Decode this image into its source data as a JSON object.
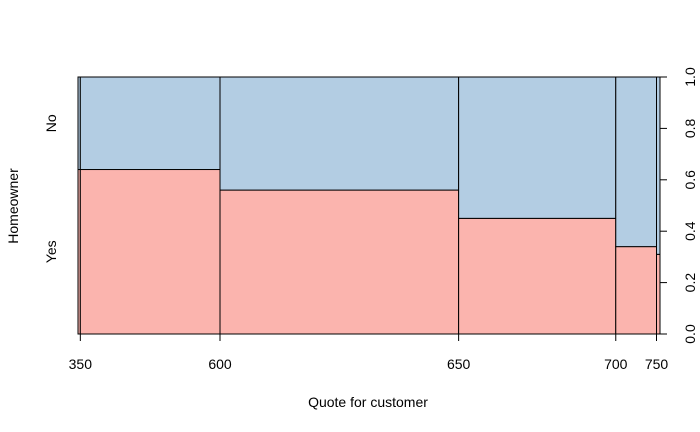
{
  "chart_data": {
    "type": "spineplot",
    "xlabel": "Quote for customer",
    "ylabel": "Homeowner",
    "x_breaks": [
      350,
      600,
      650,
      700,
      750
    ],
    "x_tick_labels": [
      "350",
      "600",
      "650",
      "700",
      "750"
    ],
    "categories": [
      "Yes",
      "No"
    ],
    "bins": [
      {
        "from": "",
        "to": 350,
        "share": 0.004,
        "yes": 0.64
      },
      {
        "from": 350,
        "to": 600,
        "share": 0.24,
        "yes": 0.64
      },
      {
        "from": 600,
        "to": 650,
        "share": 0.41,
        "yes": 0.56
      },
      {
        "from": 650,
        "to": 700,
        "share": 0.27,
        "yes": 0.45
      },
      {
        "from": 700,
        "to": 750,
        "share": 0.07,
        "yes": 0.34
      },
      {
        "from": 750,
        "to": "",
        "share": 0.006,
        "yes": 0.31
      }
    ],
    "ylim": [
      0,
      1
    ],
    "y_ticks": [
      "0.0",
      "0.2",
      "0.4",
      "0.6",
      "0.8",
      "1.0"
    ],
    "colors": {
      "Yes": "#FBB4AE",
      "No": "#B3CDE3"
    }
  }
}
